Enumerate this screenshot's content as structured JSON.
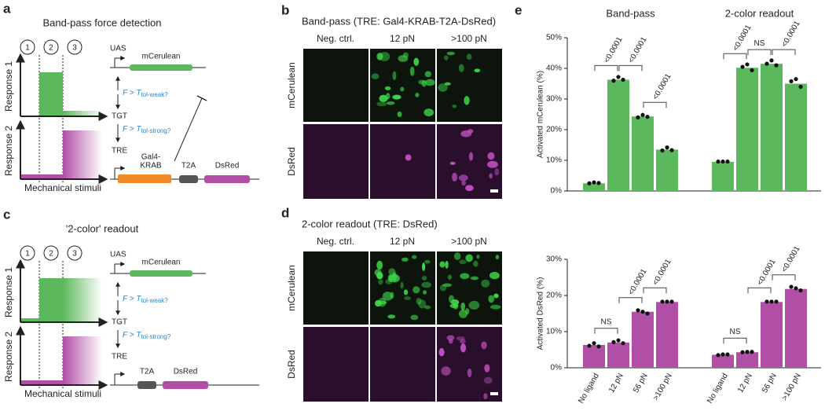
{
  "panels": {
    "a": {
      "letter": "a",
      "title": "Band-pass force detection",
      "stages": [
        "1",
        "2",
        "3"
      ],
      "response1": "Response 1",
      "response2": "Response 2",
      "x_label": "Mechanical stimuli",
      "uas": "UAS",
      "mcerulean": "mCerulean",
      "force_weak": "F > T",
      "weak_sub": "tol-weak?",
      "tgt": "TGT",
      "force_strong": "F > T",
      "strong_sub": "tol-strong?",
      "tre": "TRE",
      "gal4": [
        "Gal4-",
        "KRAB"
      ],
      "t2a": "T2A",
      "dsred": "DsRed"
    },
    "c": {
      "letter": "c",
      "title": "'2-color' readout",
      "stages": [
        "1",
        "2",
        "3"
      ],
      "response1": "Response 1",
      "response2": "Response 2",
      "x_label": "Mechanical stimuli",
      "uas": "UAS",
      "mcerulean": "mCerulean",
      "force_weak": "F > T",
      "weak_sub": "tol-weak?",
      "tgt": "TGT",
      "force_strong": "F > T",
      "strong_sub": "tol-strong?",
      "tre": "TRE",
      "t2a": "T2A",
      "dsred": "DsRed"
    },
    "b": {
      "letter": "b",
      "title": "Band-pass (TRE: Gal4-KRAB-T2A-DsRed)",
      "columns": [
        "Neg. ctrl.",
        "12 pN",
        ">100 pN"
      ],
      "rows": [
        "mCerulean",
        "DsRed"
      ]
    },
    "d": {
      "letter": "d",
      "title": "2-color readout (TRE: DsRed)",
      "columns": [
        "Neg. ctrl.",
        "12 pN",
        ">100 pN"
      ],
      "rows": [
        "mCerulean",
        "DsRed"
      ]
    },
    "e": {
      "letter": "e"
    }
  },
  "chart_data": [
    {
      "type": "bar",
      "y_label": "Activated mCerulean (%)",
      "color": "#5cb85c",
      "ylim": [
        0,
        50
      ],
      "yticks": [
        {
          "value": 0,
          "label": "0%"
        },
        {
          "value": 10,
          "label": "10%"
        },
        {
          "value": 20,
          "label": "20%"
        },
        {
          "value": 30,
          "label": "30%"
        },
        {
          "value": 40,
          "label": "40%"
        },
        {
          "value": 50,
          "label": "50%"
        }
      ],
      "groups": [
        {
          "name": "Band-pass",
          "values": [
            2.5,
            36.3,
            24.3,
            13.5
          ],
          "points": [
            [
              2.5,
              2.8,
              2.6
            ],
            [
              36.0,
              37.2,
              36.3
            ],
            [
              24.0,
              24.8,
              24.2
            ],
            [
              13.2,
              14.2,
              13.3
            ]
          ],
          "significance": [
            "<0.0001",
            "<0.0001",
            "<0.0001"
          ]
        },
        {
          "name": "2-color readout",
          "values": [
            9.5,
            40.2,
            41.5,
            35.0
          ],
          "points": [
            [
              9.6,
              9.6,
              9.6
            ],
            [
              40.5,
              41.3,
              39.4
            ],
            [
              41.5,
              42.6,
              41.0
            ],
            [
              35.8,
              36.5,
              34.0
            ]
          ],
          "significance": [
            "<0.0001",
            "NS",
            "<0.0001"
          ]
        }
      ]
    },
    {
      "type": "bar",
      "y_label": "Activated DsRed (%)",
      "color": "#b04fa5",
      "ylim": [
        0,
        30
      ],
      "yticks": [
        {
          "value": 0,
          "label": "0%"
        },
        {
          "value": 10,
          "label": "10%"
        },
        {
          "value": 20,
          "label": "20%"
        },
        {
          "value": 30,
          "label": "30%"
        }
      ],
      "categories": [
        "No ligand",
        "12 pN",
        "56 pN",
        ">100 pN"
      ],
      "groups": [
        {
          "values": [
            6.3,
            7.0,
            15.5,
            18.2
          ],
          "points": [
            [
              6.1,
              6.8,
              5.9
            ],
            [
              7.1,
              7.6,
              6.8
            ],
            [
              15.9,
              15.5,
              15.0
            ],
            [
              18.3,
              18.3,
              18.3
            ]
          ],
          "significance": [
            "NS",
            "<0.0001",
            "<0.0001"
          ]
        },
        {
          "values": [
            3.6,
            4.3,
            18.2,
            21.8
          ],
          "points": [
            [
              3.5,
              3.7,
              3.7
            ],
            [
              4.3,
              4.4,
              4.4
            ],
            [
              18.3,
              18.3,
              18.3
            ],
            [
              22.4,
              22.0,
              21.4
            ]
          ],
          "significance": [
            "NS",
            "<0.0001",
            "<0.0001"
          ]
        }
      ]
    }
  ]
}
